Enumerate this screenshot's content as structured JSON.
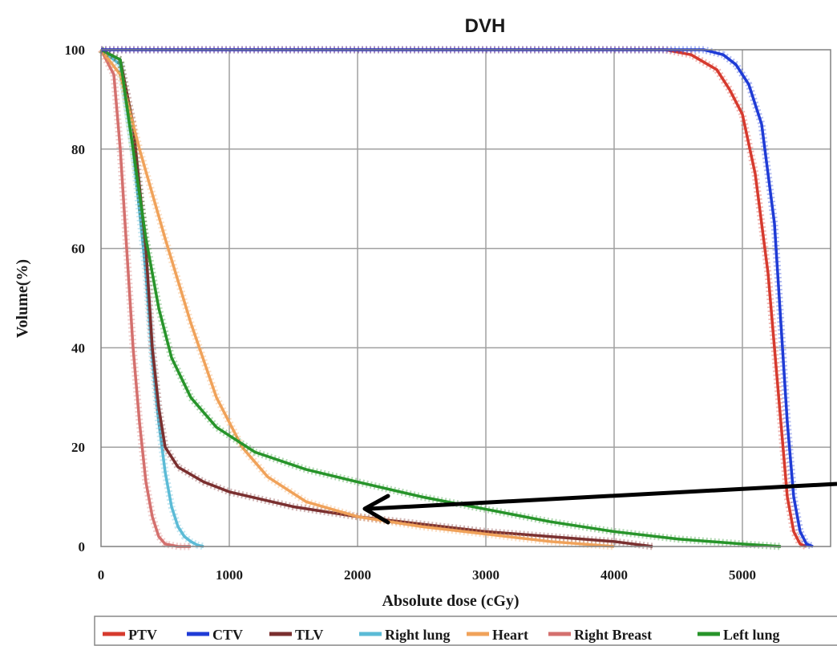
{
  "chart_data": {
    "type": "line",
    "title": "DVH",
    "xlabel": "Absolute dose (cGy)",
    "ylabel": "Volume(%)",
    "xlim": [
      0,
      5600
    ],
    "ylim": [
      0,
      100
    ],
    "xticks": [
      0,
      1000,
      2000,
      3000,
      4000,
      5000
    ],
    "yticks": [
      0,
      20,
      40,
      60,
      80,
      100
    ],
    "grid": true,
    "legend_position": "bottom",
    "series": [
      {
        "name": "PTV",
        "color": "#d63a2e",
        "x": [
          0,
          4400,
          4600,
          4800,
          4900,
          5000,
          5100,
          5200,
          5300,
          5350,
          5400,
          5450,
          5500
        ],
        "y": [
          100,
          100,
          99,
          96,
          92,
          87,
          75,
          55,
          25,
          10,
          3,
          0.5,
          0
        ]
      },
      {
        "name": "CTV",
        "color": "#1f3bd6",
        "x": [
          0,
          4700,
          4850,
          4950,
          5050,
          5150,
          5250,
          5300,
          5350,
          5400,
          5450,
          5500,
          5550
        ],
        "y": [
          100,
          100,
          99,
          97,
          93,
          85,
          65,
          45,
          25,
          10,
          3,
          0.5,
          0
        ]
      },
      {
        "name": "TLV",
        "color": "#7a2f2f",
        "x": [
          0,
          150,
          250,
          350,
          400,
          450,
          500,
          600,
          800,
          1000,
          1500,
          2000,
          2500,
          3000,
          3500,
          4000,
          4300
        ],
        "y": [
          100,
          98,
          85,
          60,
          40,
          28,
          20,
          16,
          13,
          11,
          8,
          6,
          4.5,
          3,
          2,
          1,
          0
        ]
      },
      {
        "name": "Right lung",
        "color": "#5bbbd6",
        "x": [
          0,
          150,
          250,
          350,
          400,
          450,
          500,
          550,
          600,
          650,
          700,
          750,
          800
        ],
        "y": [
          100,
          97,
          80,
          55,
          38,
          25,
          15,
          8,
          4,
          2,
          1,
          0.3,
          0
        ]
      },
      {
        "name": "Heart",
        "color": "#f0a25a",
        "x": [
          0,
          150,
          300,
          500,
          700,
          900,
          1100,
          1300,
          1600,
          2000,
          2500,
          3000,
          3500,
          4000
        ],
        "y": [
          100,
          95,
          80,
          62,
          45,
          30,
          20,
          14,
          9,
          6,
          4,
          2.5,
          1,
          0
        ]
      },
      {
        "name": "Right Breast",
        "color": "#d4706e",
        "x": [
          0,
          100,
          150,
          200,
          250,
          300,
          350,
          400,
          450,
          500,
          600,
          700
        ],
        "y": [
          100,
          95,
          80,
          60,
          40,
          25,
          13,
          6,
          2,
          0.5,
          0,
          0
        ]
      },
      {
        "name": "Left lung",
        "color": "#27942a",
        "x": [
          0,
          150,
          250,
          350,
          450,
          550,
          700,
          900,
          1200,
          1600,
          2000,
          2500,
          3000,
          3500,
          4000,
          4500,
          5000,
          5300
        ],
        "y": [
          100,
          98,
          80,
          62,
          48,
          38,
          30,
          24,
          19,
          15.5,
          13,
          10,
          7.5,
          5,
          3,
          1.5,
          0.5,
          0
        ]
      }
    ]
  }
}
